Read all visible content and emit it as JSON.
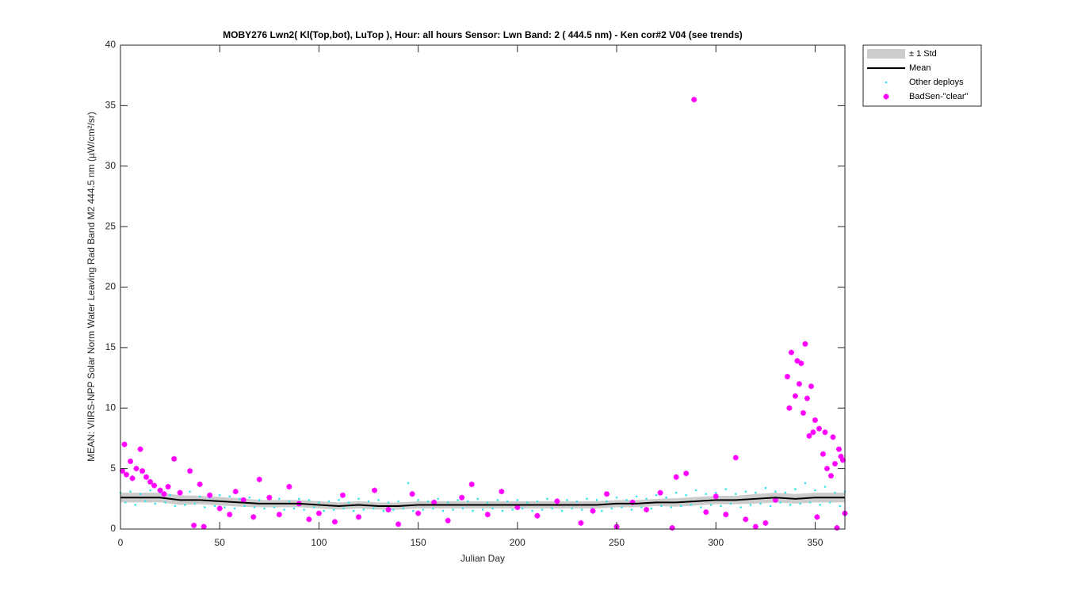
{
  "chart_data": {
    "type": "scatter",
    "title": "MOBY276   Lwn2( Kl(Top,bot), LuTop ),   Hour: all hours  Sensor: Lwn Band: 2 ( 444.5 nm)  - Ken cor#2 V04 (see trends)",
    "xlabel": "Julian Day",
    "ylabel": "MEAN: VIIRS-NPP Solar Norm Water Leaving Rad Band M2 444.5 nm (µW/cm²/sr)",
    "xlim": [
      0,
      365
    ],
    "ylim": [
      0,
      40
    ],
    "xticks": [
      0,
      50,
      100,
      150,
      200,
      250,
      300,
      350
    ],
    "yticks": [
      0,
      5,
      10,
      15,
      20,
      25,
      30,
      35,
      40
    ],
    "legend": "northeastoutside",
    "series": [
      {
        "name": "± 1 Std",
        "color": "#cccccc",
        "kind": "band",
        "x": [
          0,
          10,
          20,
          30,
          40,
          50,
          60,
          70,
          80,
          90,
          100,
          110,
          120,
          130,
          140,
          150,
          160,
          170,
          180,
          190,
          200,
          210,
          220,
          230,
          240,
          250,
          260,
          270,
          280,
          290,
          300,
          310,
          320,
          330,
          340,
          350,
          360,
          365
        ],
        "values": [
          0.4,
          0.4,
          0.4,
          0.4,
          0.35,
          0.35,
          0.35,
          0.3,
          0.3,
          0.3,
          0.3,
          0.3,
          0.3,
          0.3,
          0.3,
          0.3,
          0.3,
          0.3,
          0.3,
          0.3,
          0.3,
          0.3,
          0.3,
          0.3,
          0.3,
          0.3,
          0.3,
          0.3,
          0.35,
          0.35,
          0.35,
          0.35,
          0.4,
          0.4,
          0.4,
          0.4,
          0.4,
          0.4
        ]
      },
      {
        "name": "Mean",
        "color": "#000000",
        "kind": "line",
        "x": [
          0,
          10,
          20,
          30,
          40,
          50,
          60,
          70,
          80,
          90,
          100,
          110,
          120,
          130,
          140,
          150,
          160,
          170,
          180,
          190,
          200,
          210,
          220,
          230,
          240,
          250,
          260,
          270,
          280,
          290,
          300,
          310,
          320,
          330,
          340,
          350,
          360,
          365
        ],
        "values": [
          2.6,
          2.6,
          2.6,
          2.4,
          2.4,
          2.3,
          2.2,
          2.1,
          2.1,
          2.1,
          2.0,
          1.9,
          2.0,
          1.9,
          1.9,
          2.0,
          2.0,
          2.0,
          2.0,
          2.0,
          2.0,
          2.0,
          2.0,
          2.0,
          2.0,
          2.1,
          2.1,
          2.2,
          2.2,
          2.3,
          2.4,
          2.4,
          2.5,
          2.6,
          2.5,
          2.6,
          2.6,
          2.6
        ]
      },
      {
        "name": "Other deploys",
        "color": "#33e6f0",
        "kind": "scatter",
        "marker": "dot",
        "x": [
          0,
          5,
          10,
          15,
          20,
          25,
          30,
          35,
          40,
          45,
          50,
          55,
          60,
          65,
          70,
          75,
          80,
          85,
          90,
          95,
          100,
          105,
          110,
          115,
          120,
          125,
          130,
          135,
          140,
          145,
          150,
          155,
          160,
          165,
          170,
          175,
          180,
          185,
          190,
          195,
          200,
          205,
          210,
          215,
          220,
          225,
          230,
          235,
          240,
          245,
          250,
          255,
          260,
          265,
          270,
          275,
          280,
          285,
          290,
          295,
          300,
          305,
          310,
          315,
          320,
          325,
          330,
          335,
          340,
          345,
          350,
          355,
          360,
          365,
          2.5,
          7.5,
          12.5,
          17.5,
          22.5,
          27.5,
          32.5,
          37.5,
          42.5,
          47.5,
          52.5,
          57.5,
          62.5,
          67.5,
          72.5,
          77.5,
          82.5,
          87.5,
          92.5,
          97.5,
          102.5,
          107.5,
          112.5,
          117.5,
          122.5,
          127.5,
          132.5,
          137.5,
          142.5,
          147.5,
          152.5,
          157.5,
          162.5,
          167.5,
          172.5,
          177.5,
          182.5,
          187.5,
          192.5,
          197.5,
          202.5,
          207.5,
          212.5,
          217.5,
          222.5,
          227.5,
          232.5,
          237.5,
          242.5,
          247.5,
          252.5,
          257.5,
          262.5,
          267.5,
          272.5,
          277.5,
          282.5,
          287.5,
          292.5,
          297.5,
          302.5,
          307.5,
          312.5,
          317.5,
          322.5,
          327.5,
          332.5,
          337.5,
          342.5,
          347.5,
          352.5,
          357.5,
          362.5
        ],
        "values": [
          3.0,
          3.1,
          2.9,
          3.2,
          3.0,
          2.8,
          2.9,
          3.1,
          2.7,
          2.6,
          2.8,
          2.7,
          2.5,
          2.6,
          2.4,
          2.6,
          2.5,
          2.3,
          2.5,
          2.4,
          2.2,
          2.3,
          2.4,
          2.2,
          2.5,
          2.3,
          2.4,
          2.2,
          2.3,
          3.8,
          2.4,
          2.3,
          2.5,
          2.2,
          2.4,
          2.3,
          2.5,
          2.2,
          2.4,
          2.3,
          2.4,
          2.2,
          2.3,
          2.5,
          2.2,
          2.4,
          2.3,
          2.5,
          2.4,
          2.3,
          2.6,
          2.4,
          2.7,
          2.5,
          2.8,
          2.6,
          3.0,
          2.8,
          3.2,
          2.9,
          3.0,
          3.3,
          2.9,
          3.1,
          3.0,
          3.4,
          3.1,
          3.0,
          3.3,
          3.8,
          3.2,
          3.5,
          3.0,
          3.1,
          2.2,
          2.0,
          2.3,
          2.1,
          2.2,
          1.9,
          2.0,
          2.1,
          1.8,
          1.9,
          1.8,
          1.7,
          1.9,
          1.8,
          1.7,
          1.8,
          1.6,
          1.7,
          1.6,
          1.8,
          1.5,
          1.6,
          1.7,
          1.5,
          1.6,
          1.7,
          1.5,
          1.6,
          1.7,
          1.5,
          1.6,
          1.7,
          1.5,
          1.6,
          1.7,
          1.5,
          1.6,
          1.7,
          1.5,
          1.6,
          1.7,
          1.5,
          1.6,
          1.7,
          1.5,
          1.7,
          1.6,
          1.7,
          1.5,
          1.7,
          1.8,
          1.6,
          1.8,
          1.7,
          1.9,
          1.8,
          1.9,
          2.0,
          1.8,
          2.0,
          1.9,
          2.1,
          1.8,
          2.0,
          2.1,
          1.9,
          2.2,
          2.0,
          2.1,
          2.2,
          2.0,
          2.2,
          1.9
        ]
      },
      {
        "name": "BadSen-\"clear\"",
        "color": "#ff00ff",
        "kind": "scatter",
        "marker": "star",
        "x": [
          1,
          2,
          3,
          5,
          6,
          8,
          10,
          11,
          13,
          15,
          17,
          20,
          22,
          24,
          27,
          30,
          35,
          37,
          40,
          42,
          45,
          50,
          55,
          58,
          62,
          67,
          70,
          75,
          80,
          85,
          90,
          95,
          100,
          108,
          112,
          120,
          128,
          135,
          140,
          147,
          150,
          158,
          165,
          172,
          177,
          185,
          192,
          200,
          210,
          220,
          232,
          238,
          245,
          250,
          258,
          265,
          272,
          278,
          280,
          285,
          289,
          295,
          300,
          305,
          310,
          315,
          320,
          325,
          330,
          336,
          337,
          338,
          340,
          341,
          342,
          343,
          344,
          345,
          346,
          347,
          348,
          349,
          350,
          351,
          352,
          354,
          355,
          356,
          358,
          359,
          360,
          361,
          362,
          363,
          364,
          365
        ],
        "values": [
          4.8,
          7.0,
          4.5,
          5.6,
          4.2,
          5.0,
          6.6,
          4.8,
          4.3,
          3.9,
          3.6,
          3.2,
          2.9,
          3.5,
          5.8,
          3.0,
          4.8,
          0.3,
          3.7,
          0.2,
          2.8,
          1.7,
          1.2,
          3.1,
          2.4,
          1.0,
          4.1,
          2.6,
          1.2,
          3.5,
          2.1,
          0.8,
          1.3,
          0.6,
          2.8,
          1.0,
          3.2,
          1.6,
          0.4,
          2.9,
          1.3,
          2.2,
          0.7,
          2.6,
          3.7,
          1.2,
          3.1,
          1.8,
          1.1,
          2.3,
          0.5,
          1.5,
          2.9,
          0.2,
          2.2,
          1.6,
          3.0,
          0.1,
          4.3,
          4.6,
          35.5,
          1.4,
          2.7,
          1.2,
          5.9,
          0.8,
          0.2,
          0.5,
          2.4,
          12.6,
          10.0,
          14.6,
          11.0,
          13.9,
          12.0,
          13.7,
          9.6,
          15.3,
          10.8,
          7.7,
          11.8,
          8.0,
          9.0,
          1.0,
          8.3,
          6.2,
          8.0,
          5.0,
          4.4,
          7.6,
          5.4,
          0.1,
          6.6,
          6.0,
          5.7,
          1.3
        ]
      }
    ]
  }
}
